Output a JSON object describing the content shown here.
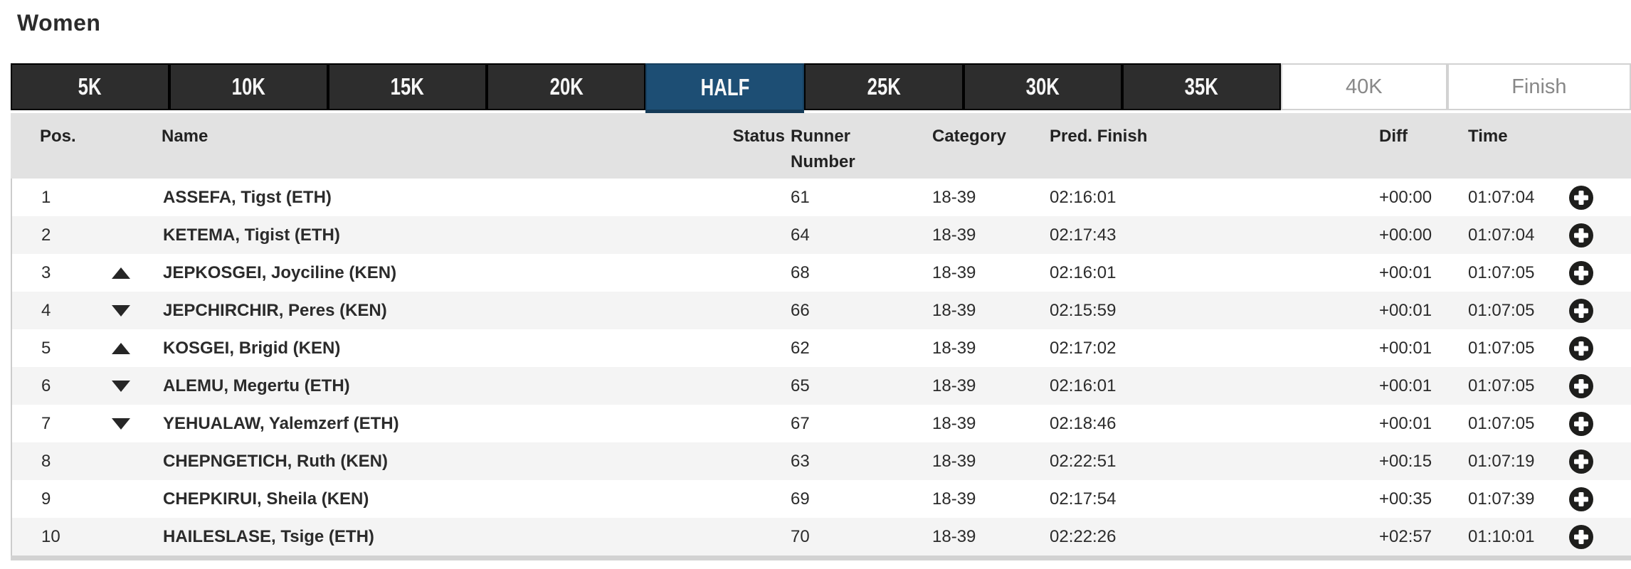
{
  "page": {
    "title": "Women"
  },
  "tabs": [
    {
      "label": "5K",
      "state": "dark"
    },
    {
      "label": "10K",
      "state": "dark"
    },
    {
      "label": "15K",
      "state": "dark"
    },
    {
      "label": "20K",
      "state": "dark"
    },
    {
      "label": "HALF",
      "state": "active"
    },
    {
      "label": "25K",
      "state": "dark"
    },
    {
      "label": "30K",
      "state": "dark"
    },
    {
      "label": "35K",
      "state": "dark"
    },
    {
      "label": "40K",
      "state": "light"
    },
    {
      "label": "Finish",
      "state": "light"
    }
  ],
  "table": {
    "headers": {
      "pos": "Pos.",
      "name": "Name",
      "status": "Status",
      "runner_number": "Runner\nNumber",
      "category": "Category",
      "pred_finish": "Pred. Finish",
      "diff": "Diff",
      "time": "Time"
    },
    "rows": [
      {
        "pos": "1",
        "trend": "",
        "name": "ASSEFA, Tigst (ETH)",
        "status": "",
        "runner_number": "61",
        "category": "18-39",
        "pred_finish": "02:16:01",
        "diff": "+00:00",
        "time": "01:07:04"
      },
      {
        "pos": "2",
        "trend": "",
        "name": "KETEMA, Tigist (ETH)",
        "status": "",
        "runner_number": "64",
        "category": "18-39",
        "pred_finish": "02:17:43",
        "diff": "+00:00",
        "time": "01:07:04"
      },
      {
        "pos": "3",
        "trend": "up",
        "name": "JEPKOSGEI, Joyciline (KEN)",
        "status": "",
        "runner_number": "68",
        "category": "18-39",
        "pred_finish": "02:16:01",
        "diff": "+00:01",
        "time": "01:07:05"
      },
      {
        "pos": "4",
        "trend": "down",
        "name": "JEPCHIRCHIR, Peres (KEN)",
        "status": "",
        "runner_number": "66",
        "category": "18-39",
        "pred_finish": "02:15:59",
        "diff": "+00:01",
        "time": "01:07:05"
      },
      {
        "pos": "5",
        "trend": "up",
        "name": "KOSGEI, Brigid (KEN)",
        "status": "",
        "runner_number": "62",
        "category": "18-39",
        "pred_finish": "02:17:02",
        "diff": "+00:01",
        "time": "01:07:05"
      },
      {
        "pos": "6",
        "trend": "down",
        "name": "ALEMU, Megertu (ETH)",
        "status": "",
        "runner_number": "65",
        "category": "18-39",
        "pred_finish": "02:16:01",
        "diff": "+00:01",
        "time": "01:07:05"
      },
      {
        "pos": "7",
        "trend": "down",
        "name": "YEHUALAW, Yalemzerf (ETH)",
        "status": "",
        "runner_number": "67",
        "category": "18-39",
        "pred_finish": "02:18:46",
        "diff": "+00:01",
        "time": "01:07:05"
      },
      {
        "pos": "8",
        "trend": "",
        "name": "CHEPNGETICH, Ruth (KEN)",
        "status": "",
        "runner_number": "63",
        "category": "18-39",
        "pred_finish": "02:22:51",
        "diff": "+00:15",
        "time": "01:07:19"
      },
      {
        "pos": "9",
        "trend": "",
        "name": "CHEPKIRUI, Sheila (KEN)",
        "status": "",
        "runner_number": "69",
        "category": "18-39",
        "pred_finish": "02:17:54",
        "diff": "+00:35",
        "time": "01:07:39"
      },
      {
        "pos": "10",
        "trend": "",
        "name": "HAILESLASE, Tsige (ETH)",
        "status": "",
        "runner_number": "70",
        "category": "18-39",
        "pred_finish": "02:22:26",
        "diff": "+02:57",
        "time": "01:10:01"
      }
    ]
  },
  "icons": {
    "expand": "plus-circle-icon",
    "trend_up": "up-triangle-icon",
    "trend_down": "down-triangle-icon"
  },
  "colors": {
    "tab_dark_bg": "#2d2d2d",
    "tab_active_bg": "#1d4e74",
    "tab_light_text": "#888888",
    "header_bg": "#e2e2e2",
    "row_alt_bg": "#f4f4f4",
    "text": "#2b2b2b",
    "bottom_strip": "#d2d2d2"
  }
}
